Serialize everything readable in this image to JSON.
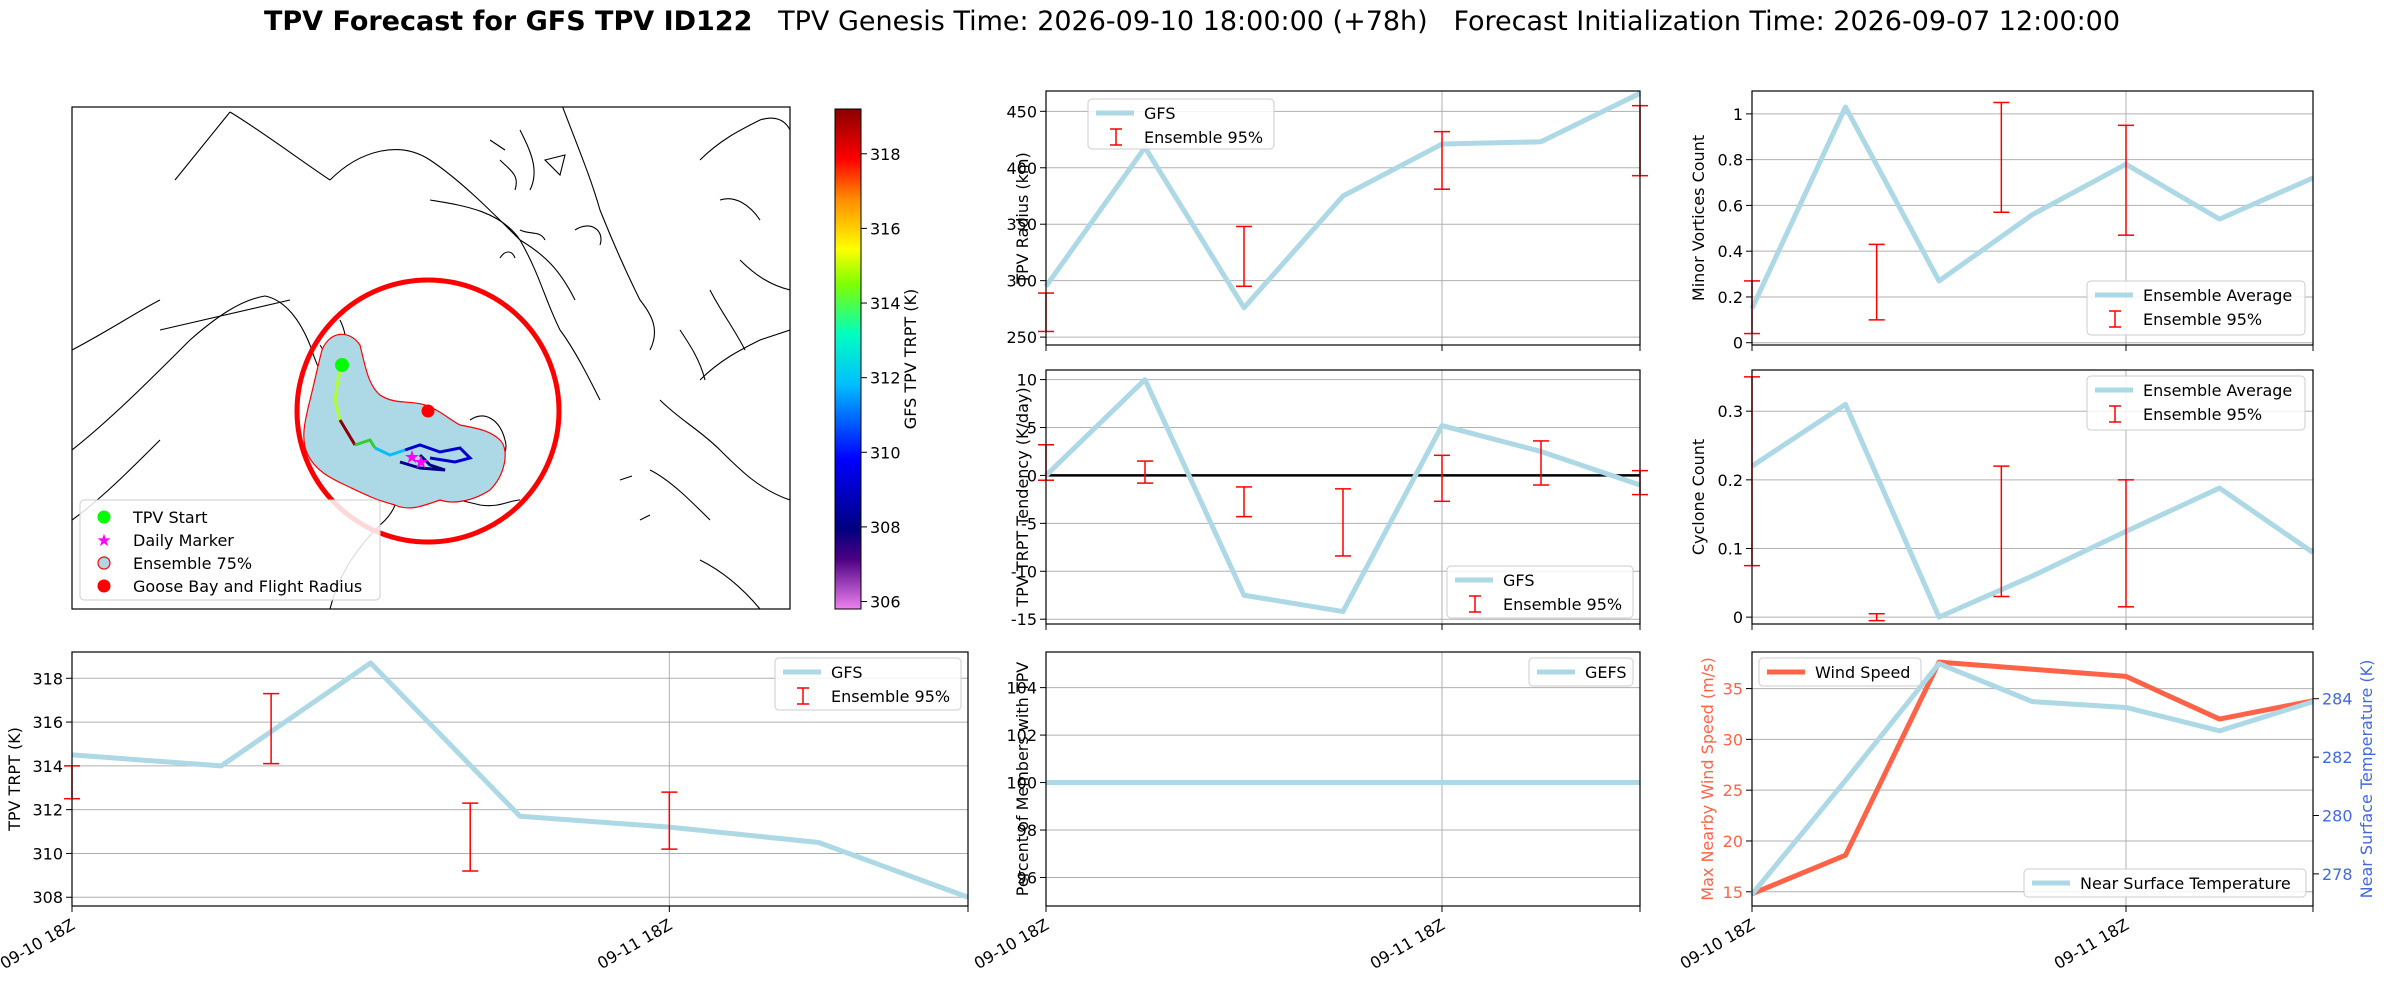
{
  "figure": {
    "title_bold": "TPV Forecast for GFS TPV ID122",
    "title_genesis": "TPV Genesis Time: 2026-09-10 18:00:00 (+78h)",
    "title_init": "Forecast Initialization Time: 2026-09-07 12:00:00"
  },
  "colors": {
    "gfs_line": "#add8e6",
    "ensemble": "#ff0000",
    "wind": "#ff6347",
    "temp_axis": "#4169e1",
    "zero_line": "#000000"
  },
  "map": {
    "legend": [
      "TPV Start",
      "Daily Marker",
      "Ensemble 75%",
      "Goose Bay and Flight Radius"
    ],
    "colorbar": {
      "label": "GFS TPV TRPT (K)",
      "ticks": [
        306,
        308,
        310,
        312,
        314,
        316,
        318
      ],
      "min": 305.8,
      "max": 319.2,
      "colormap": "rainbow-to-darkred"
    }
  },
  "chart_data": [
    {
      "id": "tpv-radius",
      "type": "line",
      "x": [
        "2026-09-10 18Z",
        "2026-09-11 00Z",
        "2026-09-11 06Z",
        "2026-09-11 12Z",
        "2026-09-11 18Z",
        "2026-09-12 00Z",
        "2026-09-12 06Z"
      ],
      "ylabel": "TPV Radius (km)",
      "ylim": [
        243,
        468
      ],
      "yticks": [
        250,
        300,
        350,
        400,
        450
      ],
      "series": [
        {
          "name": "GFS",
          "values": [
            295,
            418,
            276,
            375,
            421,
            423,
            466
          ]
        }
      ],
      "ensemble": [
        {
          "x": 0,
          "low": 255,
          "high": 289
        },
        {
          "x": 3,
          "low": 295,
          "high": 348
        },
        {
          "x": 6,
          "low": 381,
          "high": 432
        },
        {
          "x": 9,
          "low": 393,
          "high": 455
        }
      ],
      "legend": [
        "GFS",
        "Ensemble 95%"
      ],
      "legend_loc": "upper-left"
    },
    {
      "id": "minor-vortices",
      "type": "line",
      "x": [
        "2026-09-10 18Z",
        "2026-09-11 00Z",
        "2026-09-11 06Z",
        "2026-09-11 12Z",
        "2026-09-11 18Z",
        "2026-09-12 00Z",
        "2026-09-12 06Z"
      ],
      "ylabel": "Minor Vortices Count",
      "ylim": [
        -0.01,
        1.1
      ],
      "yticks": [
        0.0,
        0.2,
        0.4,
        0.6,
        0.8,
        1.0
      ],
      "series": [
        {
          "name": "Ensemble Average",
          "values": [
            0.15,
            1.03,
            0.27,
            0.56,
            0.78,
            0.54,
            0.72
          ]
        }
      ],
      "ensemble": [
        {
          "x": 0,
          "low": 0.04,
          "high": 0.27
        },
        {
          "x": 2,
          "low": 0.1,
          "high": 0.43
        },
        {
          "x": 4,
          "low": 0.57,
          "high": 1.05
        },
        {
          "x": 6,
          "low": 0.47,
          "high": 0.95
        }
      ],
      "legend": [
        "Ensemble Average",
        "Ensemble 95%"
      ],
      "legend_loc": "lower-right"
    },
    {
      "id": "trpt-tendency",
      "type": "line",
      "x": [
        "2026-09-10 18Z",
        "2026-09-11 00Z",
        "2026-09-11 06Z",
        "2026-09-11 12Z",
        "2026-09-11 18Z",
        "2026-09-12 00Z",
        "2026-09-12 06Z"
      ],
      "ylabel": "TPV TRPT Tendency (K/day)",
      "ylim": [
        -15.5,
        11
      ],
      "yticks": [
        -15,
        -10,
        -5,
        0,
        5,
        10
      ],
      "series": [
        {
          "name": "GFS",
          "values": [
            0,
            10,
            -12.5,
            -14.2,
            5.2,
            2.5,
            -1
          ]
        }
      ],
      "ensemble": [
        {
          "x": 0,
          "low": -0.5,
          "high": 3.2
        },
        {
          "x": 1.5,
          "low": -0.8,
          "high": 1.5
        },
        {
          "x": 3,
          "low": -4.3,
          "high": -1.2
        },
        {
          "x": 4.5,
          "low": -8.4,
          "high": -1.4
        },
        {
          "x": 6,
          "low": -2.7,
          "high": 2.1
        },
        {
          "x": 7.5,
          "low": -1,
          "high": 3.6
        },
        {
          "x": 9,
          "low": -2,
          "high": 0.5
        }
      ],
      "legend": [
        "GFS",
        "Ensemble 95%"
      ],
      "legend_loc": "lower-right"
    },
    {
      "id": "cyclone-count",
      "type": "line",
      "x": [
        "2026-09-10 18Z",
        "2026-09-11 00Z",
        "2026-09-11 06Z",
        "2026-09-11 12Z",
        "2026-09-11 18Z",
        "2026-09-12 00Z",
        "2026-09-12 06Z"
      ],
      "ylabel": "Cyclone Count",
      "ylim": [
        -0.01,
        0.36
      ],
      "yticks": [
        0.0,
        0.1,
        0.2,
        0.3
      ],
      "series": [
        {
          "name": "Ensemble Average",
          "values": [
            0.22,
            0.31,
            0.0,
            0.06,
            0.125,
            0.188,
            0.094
          ]
        }
      ],
      "ensemble": [
        {
          "x": 0,
          "low": 0.075,
          "high": 0.35
        },
        {
          "x": 2,
          "low": -0.005,
          "high": 0.005
        },
        {
          "x": 4,
          "low": 0.03,
          "high": 0.22
        },
        {
          "x": 6,
          "low": 0.015,
          "high": 0.2
        }
      ],
      "legend": [
        "Ensemble Average",
        "Ensemble 95%"
      ],
      "legend_loc": "upper-right"
    },
    {
      "id": "tpv-trpt",
      "type": "line",
      "x": [
        "2026-09-10 18Z",
        "2026-09-11 00Z",
        "2026-09-11 06Z",
        "2026-09-11 12Z",
        "2026-09-11 18Z",
        "2026-09-12 00Z",
        "2026-09-12 06Z"
      ],
      "ylabel": "TPV TRPT (K)",
      "ylim": [
        307.6,
        319.2
      ],
      "yticks": [
        308,
        310,
        312,
        314,
        316,
        318
      ],
      "xticks": [
        {
          "x": 0,
          "label": "09-10 18Z"
        },
        {
          "x": 4,
          "label": "09-11 18Z"
        }
      ],
      "series": [
        {
          "name": "GFS",
          "values": [
            314.5,
            314,
            318.7,
            311.7,
            311.2,
            310.5,
            308
          ]
        }
      ],
      "ensemble": [
        {
          "x": 0,
          "low": 312.5,
          "high": 314
        },
        {
          "x": 2,
          "low": 314.1,
          "high": 317.3
        },
        {
          "x": 4,
          "low": 309.2,
          "high": 312.3
        },
        {
          "x": 6,
          "low": 310.2,
          "high": 312.8
        }
      ],
      "legend": [
        "GFS",
        "Ensemble 95%"
      ],
      "legend_loc": "upper-right"
    },
    {
      "id": "percent-members",
      "type": "line",
      "x": [
        "2026-09-10 18Z",
        "2026-09-11 00Z",
        "2026-09-11 06Z",
        "2026-09-11 12Z",
        "2026-09-11 18Z",
        "2026-09-12 00Z",
        "2026-09-12 06Z"
      ],
      "ylabel": "Percent of Members with TPV",
      "ylim": [
        94.8,
        105.5
      ],
      "yticks": [
        96,
        98,
        100,
        102,
        104
      ],
      "xticks": [
        {
          "x": 0,
          "label": "09-10 18Z"
        },
        {
          "x": 4,
          "label": "09-11 18Z"
        }
      ],
      "series": [
        {
          "name": "GEFS",
          "values": [
            100,
            100,
            100,
            100,
            100,
            100,
            100
          ]
        }
      ],
      "legend": [
        "GEFS"
      ],
      "legend_loc": "upper-right"
    },
    {
      "id": "wind-temp",
      "type": "line",
      "x": [
        "2026-09-10 18Z",
        "2026-09-11 00Z",
        "2026-09-11 06Z",
        "2026-09-11 12Z",
        "2026-09-11 18Z",
        "2026-09-12 00Z",
        "2026-09-12 06Z"
      ],
      "ylabel": "Max Nearby Wind Speed (m/s)",
      "ylim": [
        13.6,
        38.6
      ],
      "yticks": [
        15,
        20,
        25,
        30,
        35
      ],
      "y2label": "Near Surface Temperature (K)",
      "y2lim": [
        276.9,
        285.6
      ],
      "y2ticks": [
        278,
        280,
        282,
        284
      ],
      "xticks": [
        {
          "x": 0,
          "label": "09-10 18Z"
        },
        {
          "x": 4,
          "label": "09-11 18Z"
        }
      ],
      "series": [
        {
          "name": "Wind Speed",
          "axis": "left",
          "values": [
            14.8,
            18.6,
            37.6,
            36.9,
            36.2,
            32,
            33.8
          ]
        },
        {
          "name": "Near Surface Temperature",
          "axis": "right",
          "values": [
            277.3,
            281.2,
            285.2,
            283.9,
            283.7,
            282.9,
            283.9
          ]
        }
      ],
      "legend_left": [
        "Wind Speed"
      ],
      "legend_right": [
        "Near Surface Temperature"
      ]
    }
  ]
}
